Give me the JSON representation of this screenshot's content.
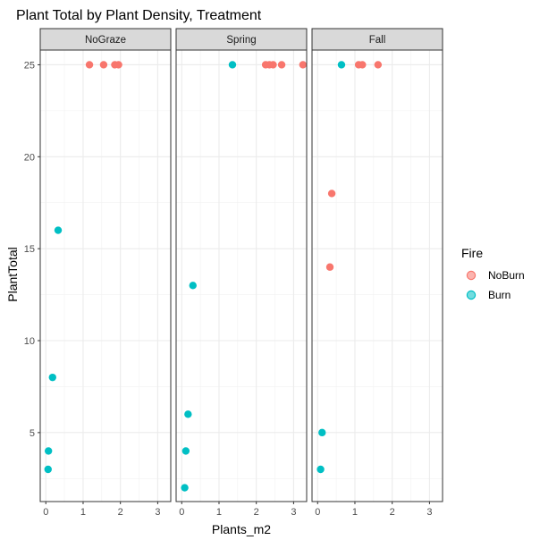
{
  "chart_data": {
    "type": "scatter",
    "title": "Plant Total by Plant Density, Treatment",
    "xlabel": "Plants_m2",
    "ylabel": "PlantTotal",
    "xlim": [
      -0.15,
      3.35
    ],
    "ylim": [
      1.25,
      25.8
    ],
    "x_ticks": [
      0,
      1,
      2,
      3
    ],
    "y_ticks": [
      5,
      10,
      15,
      20,
      25
    ],
    "grid": true,
    "legend": {
      "title": "Fire",
      "position": "right",
      "entries": [
        {
          "label": "NoBurn",
          "color": "#F8766D"
        },
        {
          "label": "Burn",
          "color": "#00BFC4"
        }
      ]
    },
    "panels": [
      {
        "name": "NoGraze",
        "series": [
          {
            "name": "NoBurn",
            "points": [
              [
                1.17,
                25
              ],
              [
                1.55,
                25
              ],
              [
                1.85,
                25
              ],
              [
                1.95,
                25
              ]
            ]
          },
          {
            "name": "Burn",
            "points": [
              [
                0.33,
                16
              ],
              [
                0.18,
                8
              ],
              [
                0.07,
                4
              ],
              [
                0.06,
                3
              ]
            ]
          }
        ]
      },
      {
        "name": "Spring",
        "series": [
          {
            "name": "NoBurn",
            "points": [
              [
                2.25,
                25
              ],
              [
                2.35,
                25
              ],
              [
                2.45,
                25
              ],
              [
                2.68,
                25
              ],
              [
                3.25,
                25
              ]
            ]
          },
          {
            "name": "Burn",
            "points": [
              [
                1.36,
                25
              ],
              [
                0.3,
                13
              ],
              [
                0.17,
                6
              ],
              [
                0.11,
                4
              ],
              [
                0.08,
                2
              ]
            ]
          }
        ]
      },
      {
        "name": "Fall",
        "series": [
          {
            "name": "NoBurn",
            "points": [
              [
                1.1,
                25
              ],
              [
                1.2,
                25
              ],
              [
                1.62,
                25
              ],
              [
                0.38,
                18
              ],
              [
                0.33,
                14
              ]
            ]
          },
          {
            "name": "Burn",
            "points": [
              [
                0.64,
                25
              ],
              [
                0.12,
                5
              ],
              [
                0.08,
                3
              ]
            ]
          }
        ]
      }
    ]
  }
}
